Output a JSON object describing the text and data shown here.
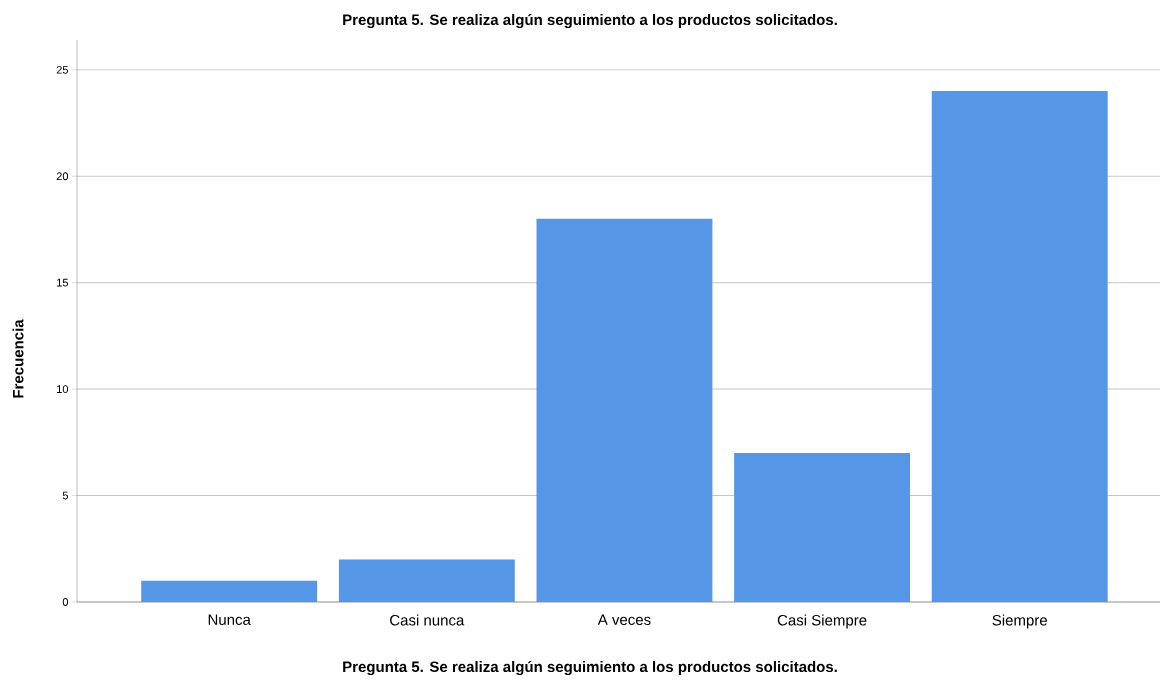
{
  "chart_data": {
    "type": "bar",
    "title": "Pregunta 5. Se realiza algún seguimiento a los productos solicitados.",
    "xlabel": "Pregunta 5. Se realiza algún seguimiento a los productos solicitados.",
    "ylabel": "Frecuencia",
    "categories": [
      "Nunca",
      "Casi nunca",
      "A veces",
      "Casi Siempre",
      "Siempre"
    ],
    "values": [
      1,
      2,
      18,
      7,
      24
    ],
    "color": "#5596e6",
    "ylim": [
      0,
      26.4
    ],
    "yticks": [
      0,
      5,
      10,
      15,
      20,
      25
    ],
    "grid": "y"
  }
}
